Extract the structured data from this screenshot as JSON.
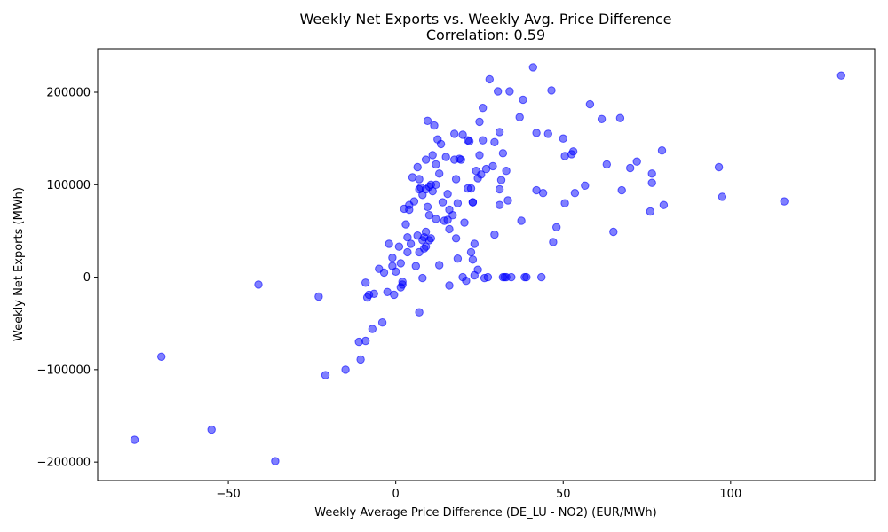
{
  "chart_data": {
    "type": "scatter",
    "title": "Weekly Net Exports vs. Weekly Avg. Price Difference",
    "subtitle": "Correlation: 0.59",
    "xlabel": "Weekly Average Price Difference (DE_LU - NO2) (EUR/MWh)",
    "ylabel": "Weekly Net Exports (MWh)",
    "xlim": [
      -89,
      143
    ],
    "ylim": [
      -220000,
      247000
    ],
    "xticks": [
      -50,
      0,
      50,
      100
    ],
    "xtick_labels": [
      "−50",
      "0",
      "50",
      "100"
    ],
    "yticks": [
      -200000,
      -100000,
      0,
      100000,
      200000
    ],
    "ytick_labels": [
      "−200000",
      "−100000",
      "0",
      "100000",
      "200000"
    ],
    "grid": false,
    "marker_color": "#0000ff",
    "marker_alpha": 0.5,
    "points": [
      [
        -78,
        -176000
      ],
      [
        -70,
        -86000
      ],
      [
        -55,
        -165000
      ],
      [
        -41,
        -8000
      ],
      [
        -36,
        -199000
      ],
      [
        -23,
        -21000
      ],
      [
        -21,
        -106000
      ],
      [
        -15,
        -100000
      ],
      [
        -11,
        -70000
      ],
      [
        -10.5,
        -89000
      ],
      [
        -9,
        -6000
      ],
      [
        -9,
        -69000
      ],
      [
        -8.5,
        -22000
      ],
      [
        -8,
        -19000
      ],
      [
        -7,
        -56000
      ],
      [
        -6.5,
        -18000
      ],
      [
        -5,
        9000
      ],
      [
        -4,
        -49000
      ],
      [
        -3.5,
        5000
      ],
      [
        -2.5,
        -16000
      ],
      [
        -2,
        36000
      ],
      [
        -1,
        12000
      ],
      [
        -1,
        21000
      ],
      [
        -0.5,
        -19000
      ],
      [
        0,
        6000
      ],
      [
        1,
        33000
      ],
      [
        1.5,
        -11000
      ],
      [
        1.5,
        15000
      ],
      [
        2,
        -8000
      ],
      [
        2,
        -5000
      ],
      [
        2.5,
        74000
      ],
      [
        3,
        57000
      ],
      [
        3.5,
        43000
      ],
      [
        3.5,
        27000
      ],
      [
        4,
        78000
      ],
      [
        4,
        73000
      ],
      [
        4.5,
        36000
      ],
      [
        5,
        108000
      ],
      [
        5.5,
        82000
      ],
      [
        6,
        12000
      ],
      [
        6.5,
        45000
      ],
      [
        6.5,
        119000
      ],
      [
        7,
        106000
      ],
      [
        7,
        95000
      ],
      [
        7,
        27000
      ],
      [
        7,
        -38000
      ],
      [
        7.5,
        97000
      ],
      [
        8,
        -1000
      ],
      [
        8,
        40000
      ],
      [
        8,
        89000
      ],
      [
        8.5,
        31000
      ],
      [
        8.5,
        43000
      ],
      [
        9,
        49000
      ],
      [
        9,
        33000
      ],
      [
        9,
        95000
      ],
      [
        9,
        127000
      ],
      [
        9.5,
        169000
      ],
      [
        9.5,
        76000
      ],
      [
        10,
        40000
      ],
      [
        10,
        98000
      ],
      [
        10,
        67000
      ],
      [
        10.5,
        100000
      ],
      [
        10.5,
        42000
      ],
      [
        11,
        132000
      ],
      [
        11,
        93000
      ],
      [
        11.5,
        164000
      ],
      [
        12,
        100000
      ],
      [
        12,
        122000
      ],
      [
        12,
        63000
      ],
      [
        12.5,
        149000
      ],
      [
        13,
        112000
      ],
      [
        13,
        13000
      ],
      [
        13.5,
        144000
      ],
      [
        14,
        81000
      ],
      [
        14.5,
        61000
      ],
      [
        15,
        130000
      ],
      [
        15.5,
        90000
      ],
      [
        15.5,
        62000
      ],
      [
        16,
        52000
      ],
      [
        16,
        73000
      ],
      [
        16,
        -9000
      ],
      [
        17,
        67000
      ],
      [
        17.5,
        127000
      ],
      [
        17.5,
        155000
      ],
      [
        18,
        106000
      ],
      [
        18,
        42000
      ],
      [
        18.5,
        80000
      ],
      [
        18.5,
        20000
      ],
      [
        19,
        128000
      ],
      [
        19.5,
        127000
      ],
      [
        20,
        154000
      ],
      [
        20,
        0
      ],
      [
        20.5,
        59000
      ],
      [
        21,
        -4000
      ],
      [
        21.5,
        148000
      ],
      [
        21.5,
        96000
      ],
      [
        22,
        147000
      ],
      [
        22.5,
        96000
      ],
      [
        22.5,
        27000
      ],
      [
        23,
        81000
      ],
      [
        23,
        81000
      ],
      [
        23,
        19000
      ],
      [
        23.5,
        36000
      ],
      [
        23.5,
        2000
      ],
      [
        24,
        115000
      ],
      [
        24.5,
        107000
      ],
      [
        24.5,
        8000
      ],
      [
        25,
        132000
      ],
      [
        25,
        168000
      ],
      [
        25.5,
        111000
      ],
      [
        26,
        183000
      ],
      [
        26,
        148000
      ],
      [
        26.5,
        -1000
      ],
      [
        27,
        117000
      ],
      [
        27.5,
        0
      ],
      [
        28,
        214000
      ],
      [
        29,
        120000
      ],
      [
        29.5,
        146000
      ],
      [
        29.5,
        46000
      ],
      [
        30.5,
        201000
      ],
      [
        31,
        157000
      ],
      [
        31,
        95000
      ],
      [
        31,
        78000
      ],
      [
        31.5,
        105000
      ],
      [
        32,
        0
      ],
      [
        32,
        134000
      ],
      [
        32.5,
        0
      ],
      [
        33,
        115000
      ],
      [
        33,
        0
      ],
      [
        33.5,
        83000
      ],
      [
        34,
        201000
      ],
      [
        34.5,
        0
      ],
      [
        37,
        173000
      ],
      [
        37.5,
        61000
      ],
      [
        38,
        192000
      ],
      [
        38.5,
        0
      ],
      [
        39,
        0
      ],
      [
        41,
        227000
      ],
      [
        42,
        156000
      ],
      [
        42,
        94000
      ],
      [
        43.5,
        0
      ],
      [
        44,
        91000
      ],
      [
        45.5,
        155000
      ],
      [
        46.5,
        202000
      ],
      [
        47,
        38000
      ],
      [
        48,
        54000
      ],
      [
        50,
        150000
      ],
      [
        50.5,
        131000
      ],
      [
        50.5,
        80000
      ],
      [
        52.5,
        133000
      ],
      [
        53,
        136000
      ],
      [
        53.5,
        91000
      ],
      [
        56.5,
        99000
      ],
      [
        58,
        187000
      ],
      [
        61.5,
        171000
      ],
      [
        63,
        122000
      ],
      [
        65,
        49000
      ],
      [
        67,
        172000
      ],
      [
        67.5,
        94000
      ],
      [
        70,
        118000
      ],
      [
        72,
        125000
      ],
      [
        76,
        71000
      ],
      [
        76.5,
        102000
      ],
      [
        76.5,
        112000
      ],
      [
        79.5,
        137000
      ],
      [
        80,
        78000
      ],
      [
        96.5,
        119000
      ],
      [
        97.5,
        87000
      ],
      [
        116,
        82000
      ],
      [
        133,
        218000
      ]
    ]
  }
}
